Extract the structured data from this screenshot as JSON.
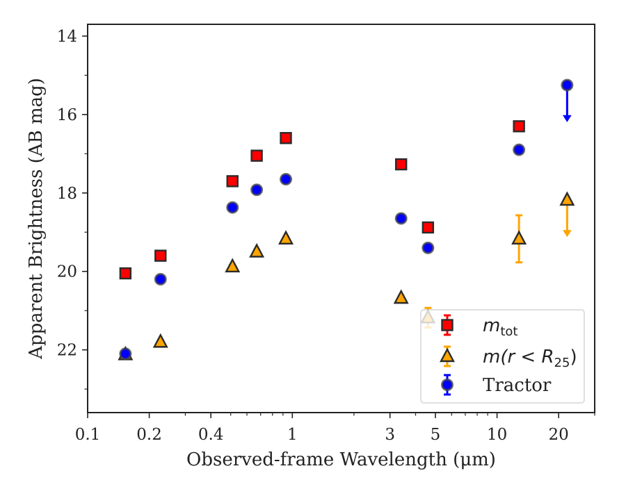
{
  "chart_data": {
    "type": "scatter",
    "title": "",
    "xlabel": "Observed-frame Wavelength (μm)",
    "ylabel": "Apparent Brightness (AB mag)",
    "xscale": "log",
    "xlim": [
      0.1,
      30
    ],
    "ylim": [
      23.6,
      13.7
    ],
    "y_inverted": true,
    "grid": false,
    "legend_position": "bottom-right",
    "x_ticks": [
      {
        "value": 0.1,
        "label": "0.1"
      },
      {
        "value": 0.2,
        "label": "0.2"
      },
      {
        "value": 0.4,
        "label": "0.4"
      },
      {
        "value": 1,
        "label": "1"
      },
      {
        "value": 3,
        "label": "3"
      },
      {
        "value": 5,
        "label": "5"
      },
      {
        "value": 10,
        "label": "10"
      },
      {
        "value": 20,
        "label": "20"
      }
    ],
    "y_ticks": [
      {
        "value": 14,
        "label": "14"
      },
      {
        "value": 16,
        "label": "16"
      },
      {
        "value": 18,
        "label": "18"
      },
      {
        "value": 20,
        "label": "20"
      },
      {
        "value": 22,
        "label": "22"
      }
    ],
    "series": [
      {
        "name": "m_tot",
        "legend": {
          "base": "m",
          "sub": "tot",
          "suffix": ""
        },
        "marker": "square",
        "color": "#ff0000",
        "points": [
          {
            "x": 0.153,
            "y": 20.05,
            "err": 0.05
          },
          {
            "x": 0.227,
            "y": 19.6,
            "err": 0.05
          },
          {
            "x": 0.51,
            "y": 17.7,
            "err": 0.05
          },
          {
            "x": 0.67,
            "y": 17.05,
            "err": 0.05
          },
          {
            "x": 0.93,
            "y": 16.6,
            "err": 0.05
          },
          {
            "x": 3.4,
            "y": 17.27,
            "err": 0.05
          },
          {
            "x": 4.6,
            "y": 18.88,
            "err": 0.05
          },
          {
            "x": 12.8,
            "y": 16.3,
            "err": 0.05
          }
        ]
      },
      {
        "name": "m(r<R25)",
        "legend": {
          "base": "m(r < R",
          "sub": "25",
          "suffix": ")"
        },
        "marker": "triangle",
        "color": "#ffa500",
        "points": [
          {
            "x": 0.153,
            "y": 22.12,
            "err": 0.05
          },
          {
            "x": 0.227,
            "y": 21.8,
            "err": 0.05
          },
          {
            "x": 0.51,
            "y": 19.88,
            "err": 0.05
          },
          {
            "x": 0.67,
            "y": 19.5,
            "err": 0.05
          },
          {
            "x": 0.93,
            "y": 19.17,
            "err": 0.05
          },
          {
            "x": 3.4,
            "y": 20.68,
            "err": 0.05
          },
          {
            "x": 4.6,
            "y": 21.18,
            "err": 0.25
          },
          {
            "x": 12.8,
            "y": 19.17,
            "err": 0.6
          },
          {
            "x": 22,
            "y": 18.18,
            "upper_limit": true
          }
        ]
      },
      {
        "name": "Tractor",
        "legend": {
          "base": "Tractor",
          "sub": "",
          "suffix": ""
        },
        "marker": "circle",
        "color": "#0000ff",
        "points": [
          {
            "x": 0.153,
            "y": 22.1,
            "err": 0.05
          },
          {
            "x": 0.227,
            "y": 20.2,
            "err": 0.05
          },
          {
            "x": 0.51,
            "y": 18.37,
            "err": 0.05
          },
          {
            "x": 0.67,
            "y": 17.92,
            "err": 0.05
          },
          {
            "x": 0.93,
            "y": 17.65,
            "err": 0.05
          },
          {
            "x": 3.4,
            "y": 18.65,
            "err": 0.05
          },
          {
            "x": 4.6,
            "y": 19.4,
            "err": 0.05
          },
          {
            "x": 12.8,
            "y": 16.9,
            "err": 0.05
          },
          {
            "x": 22,
            "y": 15.25,
            "upper_limit": true
          }
        ]
      }
    ]
  }
}
